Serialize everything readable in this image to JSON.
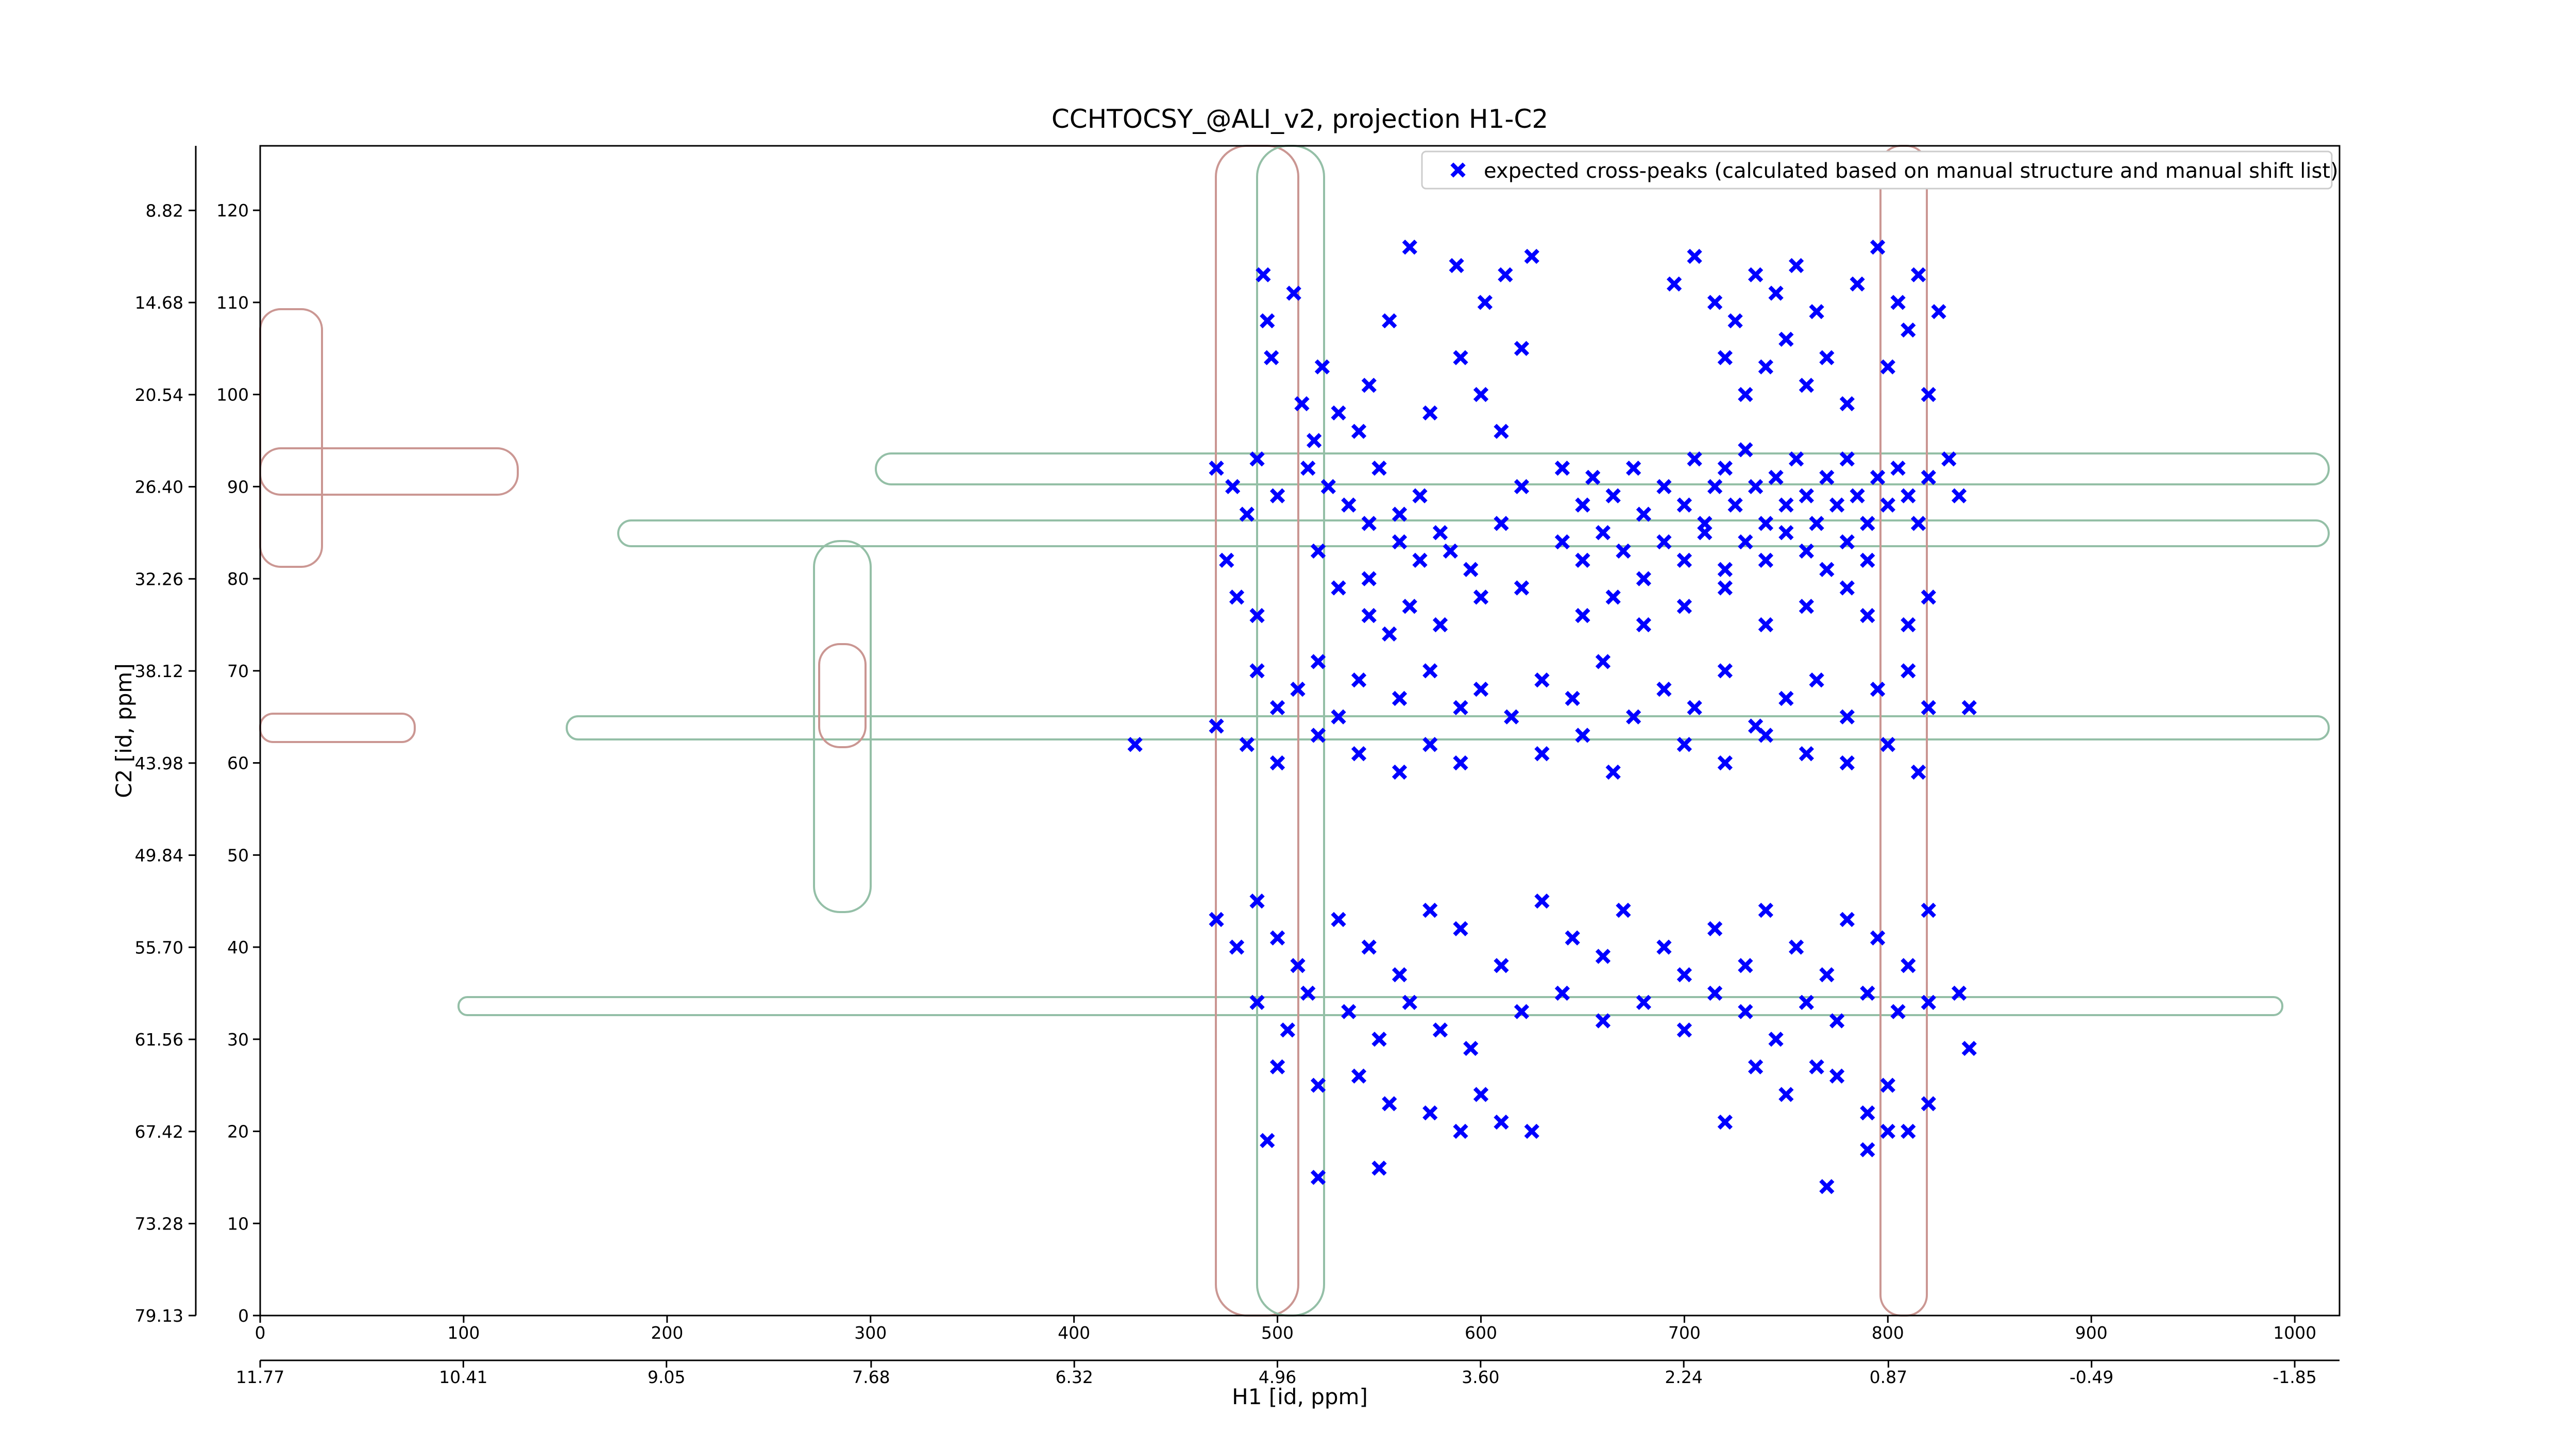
{
  "chart_data": {
    "type": "scatter",
    "title": "CCHTOCSY_@ALI_v2, projection H1-C2",
    "x_label": "H1 [id, ppm]",
    "y_label": "C2 [id, ppm]",
    "xlim": [
      0,
      1022
    ],
    "ylim": [
      0,
      127
    ],
    "xticks": [
      0,
      100,
      200,
      300,
      400,
      500,
      600,
      700,
      800,
      900,
      1000
    ],
    "yticks": [
      0,
      10,
      20,
      30,
      40,
      50,
      60,
      70,
      80,
      90,
      100,
      110,
      120
    ],
    "x2lim": [
      11.77,
      -2.15
    ],
    "x2ticks": [
      11.77,
      10.41,
      9.05,
      7.68,
      6.32,
      4.96,
      {
        "value": 3.6,
        "label": "3.60"
      },
      2.24,
      0.87,
      -0.49,
      -1.85
    ],
    "y2lim": [
      79.13,
      4.71
    ],
    "y2ticks": [
      79.13,
      73.28,
      67.42,
      61.56,
      {
        "value": 55.7,
        "label": "55.70"
      },
      49.84,
      43.98,
      38.12,
      32.26,
      {
        "value": 26.4,
        "label": "26.40"
      },
      20.54,
      14.68,
      8.82
    ],
    "legend": "upper right",
    "series": [
      {
        "name": "expected cross-peaks (calculated based on manual structure and manual shift list)",
        "color": "#0000ff",
        "x": [
          565,
          588,
          625,
          602,
          612,
          555,
          590,
          600,
          620,
          695,
          705,
          715,
          725,
          735,
          745,
          755,
          765,
          785,
          795,
          805,
          815,
          825,
          720,
          730,
          740,
          750,
          760,
          770,
          780,
          800,
          810,
          820,
          493,
          495,
          497,
          508,
          512,
          518,
          522,
          530,
          540,
          545,
          575,
          610,
          470,
          478,
          485,
          490,
          500,
          515,
          525,
          535,
          545,
          550,
          560,
          570,
          580,
          610,
          620,
          640,
          650,
          655,
          665,
          675,
          680,
          690,
          700,
          705,
          710,
          715,
          720,
          725,
          730,
          735,
          740,
          745,
          750,
          755,
          760,
          765,
          770,
          775,
          780,
          785,
          790,
          795,
          800,
          805,
          810,
          815,
          820,
          830,
          835,
          640,
          650,
          660,
          670,
          680,
          690,
          700,
          710,
          720,
          730,
          740,
          750,
          760,
          770,
          780,
          790,
          560,
          570,
          585,
          595,
          545,
          475,
          520,
          480,
          490,
          530,
          545,
          555,
          565,
          580,
          600,
          620,
          650,
          665,
          680,
          700,
          720,
          740,
          760,
          780,
          790,
          810,
          820,
          490,
          500,
          510,
          520,
          530,
          540,
          560,
          575,
          590,
          600,
          615,
          630,
          645,
          660,
          675,
          690,
          705,
          720,
          735,
          750,
          765,
          780,
          795,
          810,
          820,
          840,
          470,
          485,
          500,
          520,
          540,
          560,
          575,
          590,
          630,
          650,
          665,
          700,
          720,
          740,
          760,
          780,
          800,
          815,
          430,
          470,
          480,
          490,
          500,
          510,
          530,
          545,
          560,
          575,
          590,
          610,
          630,
          645,
          660,
          670,
          690,
          700,
          715,
          730,
          740,
          755,
          770,
          780,
          795,
          810,
          820,
          490,
          505,
          515,
          535,
          550,
          565,
          580,
          595,
          620,
          640,
          660,
          680,
          700,
          715,
          730,
          745,
          760,
          775,
          790,
          805,
          820,
          835,
          500,
          520,
          540,
          555,
          575,
          590,
          600,
          610,
          625,
          735,
          750,
          765,
          720,
          775,
          790,
          800,
          810,
          820,
          840,
          790,
          800,
          770,
          495,
          520,
          550
        ],
        "y": [
          116,
          114,
          115,
          110,
          113,
          108,
          104,
          100,
          105,
          112,
          115,
          110,
          108,
          113,
          111,
          114,
          109,
          112,
          116,
          110,
          113,
          109,
          104,
          100,
          103,
          106,
          101,
          104,
          99,
          103,
          107,
          100,
          113,
          108,
          104,
          111,
          99,
          95,
          103,
          98,
          96,
          101,
          98,
          96,
          92,
          90,
          87,
          93,
          89,
          92,
          90,
          88,
          86,
          92,
          87,
          89,
          85,
          86,
          90,
          92,
          88,
          91,
          89,
          92,
          87,
          90,
          88,
          93,
          86,
          90,
          92,
          88,
          94,
          90,
          86,
          91,
          88,
          93,
          89,
          86,
          91,
          88,
          93,
          89,
          86,
          91,
          88,
          92,
          89,
          86,
          91,
          93,
          89,
          84,
          82,
          85,
          83,
          80,
          84,
          82,
          85,
          81,
          84,
          82,
          85,
          83,
          81,
          84,
          82,
          84,
          82,
          83,
          81,
          80,
          82,
          83,
          78,
          76,
          79,
          76,
          74,
          77,
          75,
          78,
          79,
          76,
          78,
          75,
          77,
          79,
          75,
          77,
          79,
          76,
          75,
          78,
          70,
          66,
          68,
          71,
          65,
          69,
          67,
          70,
          66,
          68,
          65,
          69,
          67,
          71,
          65,
          68,
          66,
          70,
          64,
          67,
          69,
          65,
          68,
          70,
          66,
          66,
          64,
          62,
          60,
          63,
          61,
          59,
          62,
          60,
          61,
          63,
          59,
          62,
          60,
          63,
          61,
          60,
          62,
          59,
          62,
          43,
          40,
          45,
          41,
          38,
          43,
          40,
          37,
          44,
          42,
          38,
          45,
          41,
          39,
          44,
          40,
          37,
          42,
          38,
          44,
          40,
          37,
          43,
          41,
          38,
          44,
          34,
          31,
          35,
          33,
          30,
          34,
          31,
          29,
          33,
          35,
          32,
          34,
          31,
          35,
          33,
          30,
          34,
          32,
          35,
          33,
          34,
          35,
          27,
          25,
          26,
          23,
          22,
          20,
          24,
          21,
          20,
          27,
          24,
          27,
          21,
          26,
          22,
          25,
          20,
          23,
          29,
          18,
          20,
          14,
          19,
          15,
          16
        ]
      }
    ]
  }
}
